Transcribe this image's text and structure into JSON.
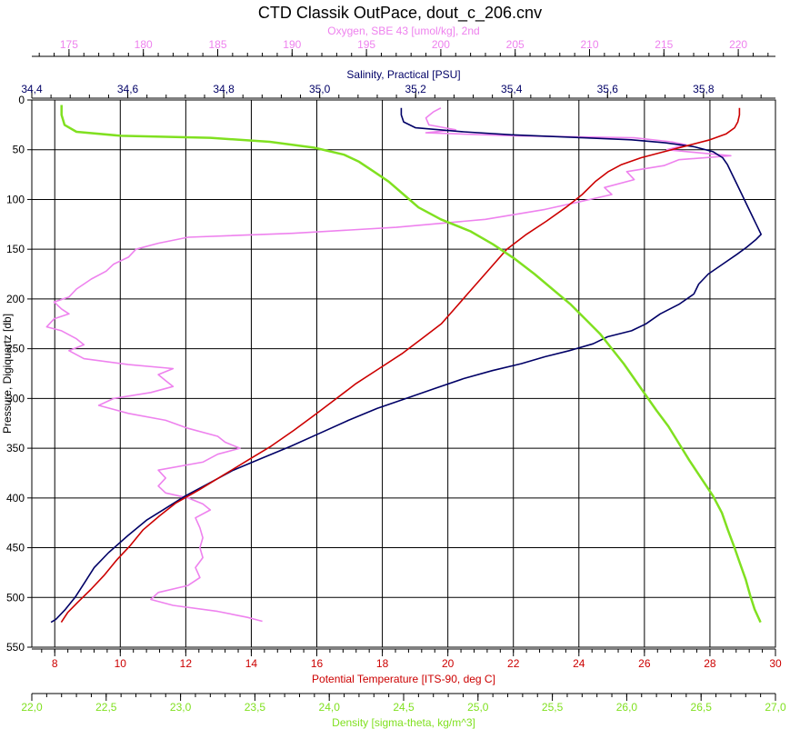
{
  "chart_data": {
    "type": "line",
    "title": "CTD Classik OutPace, dout_c_206.cnv",
    "y_axis": {
      "label": "Pressure, Digiquartz [db]",
      "range": [
        0,
        550
      ],
      "ticks": [
        0,
        50,
        100,
        150,
        200,
        250,
        300,
        350,
        400,
        450,
        500,
        550
      ],
      "inverted": true
    },
    "x_axes": [
      {
        "id": "oxygen",
        "label": "Oxygen, SBE 43 [umol/kg], 2nd",
        "position": "top-1",
        "range": [
          172.5,
          222.5
        ],
        "ticks": [
          175,
          180,
          185,
          190,
          195,
          200,
          205,
          210,
          215,
          220
        ],
        "tick_labels": [
          "175",
          "180",
          "185",
          "190",
          "195",
          "200",
          "205",
          "210",
          "215",
          "220"
        ],
        "color": "#ee82ee"
      },
      {
        "id": "salinity",
        "label": "Salinity, Practical [PSU]",
        "position": "top-2",
        "range": [
          34.4,
          35.95
        ],
        "ticks": [
          34.4,
          34.6,
          34.8,
          35.0,
          35.2,
          35.4,
          35.6,
          35.8
        ],
        "tick_labels": [
          "34,4",
          "34,6",
          "34,8",
          "35,0",
          "35,2",
          "35,4",
          "35,6",
          "35,8"
        ],
        "color": "#000066"
      },
      {
        "id": "temperature",
        "label": "Potential Temperature [ITS-90, deg C]",
        "position": "bottom-1",
        "range": [
          7.3,
          30.0
        ],
        "ticks": [
          8,
          10,
          12,
          14,
          16,
          18,
          20,
          22,
          24,
          26,
          28,
          30
        ],
        "tick_labels": [
          "8",
          "10",
          "12",
          "14",
          "16",
          "18",
          "20",
          "22",
          "24",
          "26",
          "28",
          "30"
        ],
        "color": "#cc0000"
      },
      {
        "id": "density",
        "label": "Density [sigma-theta, kg/m^3]",
        "position": "bottom-2",
        "range": [
          22.0,
          27.0
        ],
        "ticks": [
          22.0,
          22.5,
          23.0,
          23.5,
          24.0,
          24.5,
          25.0,
          25.5,
          26.0,
          26.5,
          27.0
        ],
        "tick_labels": [
          "22,0",
          "22,5",
          "23,0",
          "23,5",
          "24,0",
          "24,5",
          "25,0",
          "25,5",
          "26,0",
          "26,5",
          "27,0"
        ],
        "color": "#80e020"
      }
    ],
    "grid": true,
    "series": [
      {
        "axis": "oxygen",
        "color": "#ee82ee",
        "points": [
          [
            200,
            8
          ],
          [
            199.5,
            12
          ],
          [
            199,
            18
          ],
          [
            199.2,
            25
          ],
          [
            201,
            30
          ],
          [
            199,
            33
          ],
          [
            205,
            36
          ],
          [
            213,
            38
          ],
          [
            215.5,
            42
          ],
          [
            216.5,
            45
          ],
          [
            215.2,
            50
          ],
          [
            218,
            54
          ],
          [
            219.5,
            56
          ],
          [
            216,
            60
          ],
          [
            215,
            66
          ],
          [
            212.5,
            72
          ],
          [
            213,
            80
          ],
          [
            211,
            88
          ],
          [
            211.5,
            95
          ],
          [
            210,
            100
          ],
          [
            207,
            110
          ],
          [
            203,
            120
          ],
          [
            197,
            128
          ],
          [
            190,
            134
          ],
          [
            183,
            138
          ],
          [
            181,
            144
          ],
          [
            179.5,
            150
          ],
          [
            179,
            158
          ],
          [
            178,
            165
          ],
          [
            177.5,
            172
          ],
          [
            176.5,
            180
          ],
          [
            176,
            185
          ],
          [
            175.5,
            190
          ],
          [
            175,
            198
          ],
          [
            174,
            203
          ],
          [
            174.5,
            210
          ],
          [
            175,
            215
          ],
          [
            174,
            220
          ],
          [
            173.5,
            228
          ],
          [
            174.5,
            232
          ],
          [
            175.5,
            240
          ],
          [
            176,
            246
          ],
          [
            175,
            252
          ],
          [
            176,
            260
          ],
          [
            179,
            266
          ],
          [
            182,
            270
          ],
          [
            181,
            276
          ],
          [
            181.5,
            282
          ],
          [
            182,
            288
          ],
          [
            180.5,
            294
          ],
          [
            178,
            300
          ],
          [
            177,
            307
          ],
          [
            179,
            315
          ],
          [
            181.5,
            322
          ],
          [
            183,
            330
          ],
          [
            185,
            338
          ],
          [
            185.5,
            344
          ],
          [
            186.5,
            350
          ],
          [
            185,
            356
          ],
          [
            184,
            364
          ],
          [
            181,
            372
          ],
          [
            181.5,
            380
          ],
          [
            181,
            388
          ],
          [
            181.5,
            395
          ],
          [
            183,
            400
          ],
          [
            184,
            406
          ],
          [
            184.5,
            412
          ],
          [
            183.5,
            420
          ],
          [
            183.8,
            430
          ],
          [
            184,
            440
          ],
          [
            183.8,
            450
          ],
          [
            184,
            460
          ],
          [
            183.5,
            470
          ],
          [
            183.8,
            480
          ],
          [
            183,
            488
          ],
          [
            181,
            495
          ],
          [
            180.5,
            502
          ],
          [
            182,
            508
          ],
          [
            185,
            514
          ],
          [
            187,
            520
          ],
          [
            188,
            524
          ]
        ]
      },
      {
        "axis": "salinity",
        "color": "#000066",
        "points": [
          [
            35.17,
            8
          ],
          [
            35.17,
            15
          ],
          [
            35.175,
            22
          ],
          [
            35.2,
            28
          ],
          [
            35.3,
            32
          ],
          [
            35.4,
            35
          ],
          [
            35.55,
            38
          ],
          [
            35.65,
            40
          ],
          [
            35.72,
            43
          ],
          [
            35.78,
            47
          ],
          [
            35.82,
            52
          ],
          [
            35.84,
            58
          ],
          [
            35.85,
            65
          ],
          [
            35.86,
            75
          ],
          [
            35.87,
            85
          ],
          [
            35.88,
            95
          ],
          [
            35.89,
            105
          ],
          [
            35.9,
            115
          ],
          [
            35.91,
            125
          ],
          [
            35.92,
            135
          ],
          [
            35.91,
            140
          ],
          [
            35.89,
            148
          ],
          [
            35.87,
            155
          ],
          [
            35.84,
            165
          ],
          [
            35.81,
            175
          ],
          [
            35.79,
            185
          ],
          [
            35.78,
            195
          ],
          [
            35.75,
            205
          ],
          [
            35.71,
            215
          ],
          [
            35.68,
            225
          ],
          [
            35.65,
            232
          ],
          [
            35.6,
            238
          ],
          [
            35.57,
            245
          ],
          [
            35.52,
            252
          ],
          [
            35.47,
            258
          ],
          [
            35.42,
            265
          ],
          [
            35.36,
            272
          ],
          [
            35.3,
            280
          ],
          [
            35.24,
            290
          ],
          [
            35.18,
            300
          ],
          [
            35.12,
            310
          ],
          [
            35.06,
            322
          ],
          [
            35.0,
            335
          ],
          [
            34.94,
            348
          ],
          [
            34.88,
            360
          ],
          [
            34.82,
            372
          ],
          [
            34.77,
            385
          ],
          [
            34.72,
            398
          ],
          [
            34.68,
            410
          ],
          [
            34.64,
            422
          ],
          [
            34.6,
            438
          ],
          [
            34.56,
            455
          ],
          [
            34.53,
            470
          ],
          [
            34.51,
            485
          ],
          [
            34.49,
            500
          ],
          [
            34.47,
            512
          ],
          [
            34.45,
            522
          ],
          [
            34.44,
            525
          ]
        ]
      },
      {
        "axis": "temperature",
        "color": "#cc0000",
        "points": [
          [
            28.9,
            8
          ],
          [
            28.9,
            15
          ],
          [
            28.85,
            22
          ],
          [
            28.75,
            28
          ],
          [
            28.5,
            34
          ],
          [
            28.0,
            40
          ],
          [
            27.3,
            46
          ],
          [
            26.6,
            52
          ],
          [
            25.9,
            58
          ],
          [
            25.3,
            65
          ],
          [
            24.9,
            72
          ],
          [
            24.5,
            82
          ],
          [
            24.1,
            95
          ],
          [
            23.6,
            108
          ],
          [
            23.0,
            122
          ],
          [
            22.4,
            135
          ],
          [
            21.8,
            150
          ],
          [
            21.4,
            165
          ],
          [
            21.0,
            180
          ],
          [
            20.6,
            195
          ],
          [
            20.2,
            210
          ],
          [
            19.8,
            225
          ],
          [
            19.2,
            240
          ],
          [
            18.6,
            255
          ],
          [
            17.9,
            270
          ],
          [
            17.2,
            285
          ],
          [
            16.6,
            300
          ],
          [
            16.0,
            315
          ],
          [
            15.3,
            332
          ],
          [
            14.6,
            348
          ],
          [
            13.9,
            362
          ],
          [
            13.1,
            378
          ],
          [
            12.4,
            392
          ],
          [
            11.7,
            405
          ],
          [
            11.2,
            418
          ],
          [
            10.7,
            432
          ],
          [
            10.3,
            448
          ],
          [
            9.9,
            462
          ],
          [
            9.5,
            478
          ],
          [
            9.1,
            492
          ],
          [
            8.7,
            505
          ],
          [
            8.4,
            515
          ],
          [
            8.2,
            525
          ]
        ]
      },
      {
        "axis": "density",
        "color": "#80e020",
        "points": [
          [
            22.2,
            5
          ],
          [
            22.2,
            15
          ],
          [
            22.22,
            25
          ],
          [
            22.3,
            32
          ],
          [
            22.6,
            36
          ],
          [
            23.2,
            38
          ],
          [
            23.6,
            42
          ],
          [
            23.9,
            48
          ],
          [
            24.1,
            55
          ],
          [
            24.2,
            62
          ],
          [
            24.3,
            72
          ],
          [
            24.4,
            82
          ],
          [
            24.5,
            95
          ],
          [
            24.6,
            108
          ],
          [
            24.75,
            120
          ],
          [
            24.95,
            132
          ],
          [
            25.1,
            145
          ],
          [
            25.25,
            160
          ],
          [
            25.38,
            175
          ],
          [
            25.5,
            190
          ],
          [
            25.62,
            205
          ],
          [
            25.72,
            220
          ],
          [
            25.82,
            235
          ],
          [
            25.9,
            250
          ],
          [
            25.98,
            265
          ],
          [
            26.05,
            280
          ],
          [
            26.12,
            295
          ],
          [
            26.2,
            312
          ],
          [
            26.28,
            328
          ],
          [
            26.35,
            345
          ],
          [
            26.42,
            362
          ],
          [
            26.5,
            380
          ],
          [
            26.58,
            398
          ],
          [
            26.64,
            415
          ],
          [
            26.68,
            432
          ],
          [
            26.72,
            448
          ],
          [
            26.76,
            465
          ],
          [
            26.8,
            482
          ],
          [
            26.83,
            498
          ],
          [
            26.86,
            512
          ],
          [
            26.9,
            525
          ]
        ]
      }
    ]
  }
}
